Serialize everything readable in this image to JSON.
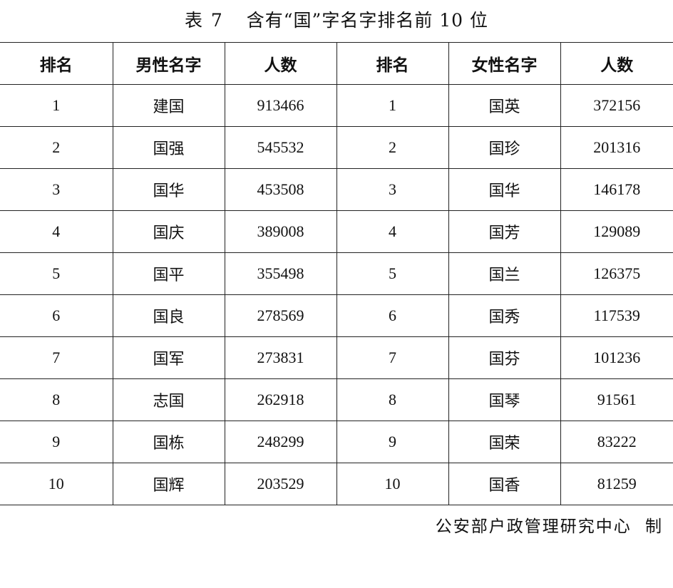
{
  "title": {
    "prefix": "表",
    "number": "7",
    "text": "含有“国”字名字排名前 10 位"
  },
  "table": {
    "headers": [
      "排名",
      "男性名字",
      "人数",
      "排名",
      "女性名字",
      "人数"
    ],
    "rows": [
      {
        "male_rank": "1",
        "male_name": "建国",
        "male_count": "913466",
        "female_rank": "1",
        "female_name": "国英",
        "female_count": "372156"
      },
      {
        "male_rank": "2",
        "male_name": "国强",
        "male_count": "545532",
        "female_rank": "2",
        "female_name": "国珍",
        "female_count": "201316"
      },
      {
        "male_rank": "3",
        "male_name": "国华",
        "male_count": "453508",
        "female_rank": "3",
        "female_name": "国华",
        "female_count": "146178"
      },
      {
        "male_rank": "4",
        "male_name": "国庆",
        "male_count": "389008",
        "female_rank": "4",
        "female_name": "国芳",
        "female_count": "129089"
      },
      {
        "male_rank": "5",
        "male_name": "国平",
        "male_count": "355498",
        "female_rank": "5",
        "female_name": "国兰",
        "female_count": "126375"
      },
      {
        "male_rank": "6",
        "male_name": "国良",
        "male_count": "278569",
        "female_rank": "6",
        "female_name": "国秀",
        "female_count": "117539"
      },
      {
        "male_rank": "7",
        "male_name": "国军",
        "male_count": "273831",
        "female_rank": "7",
        "female_name": "国芬",
        "female_count": "101236"
      },
      {
        "male_rank": "8",
        "male_name": "志国",
        "male_count": "262918",
        "female_rank": "8",
        "female_name": "国琴",
        "female_count": "91561"
      },
      {
        "male_rank": "9",
        "male_name": "国栋",
        "male_count": "248299",
        "female_rank": "9",
        "female_name": "国荣",
        "female_count": "83222"
      },
      {
        "male_rank": "10",
        "male_name": "国辉",
        "male_count": "203529",
        "female_rank": "10",
        "female_name": "国香",
        "female_count": "81259"
      }
    ]
  },
  "footer": {
    "source": "公安部户政管理研究中心",
    "suffix": "制"
  }
}
